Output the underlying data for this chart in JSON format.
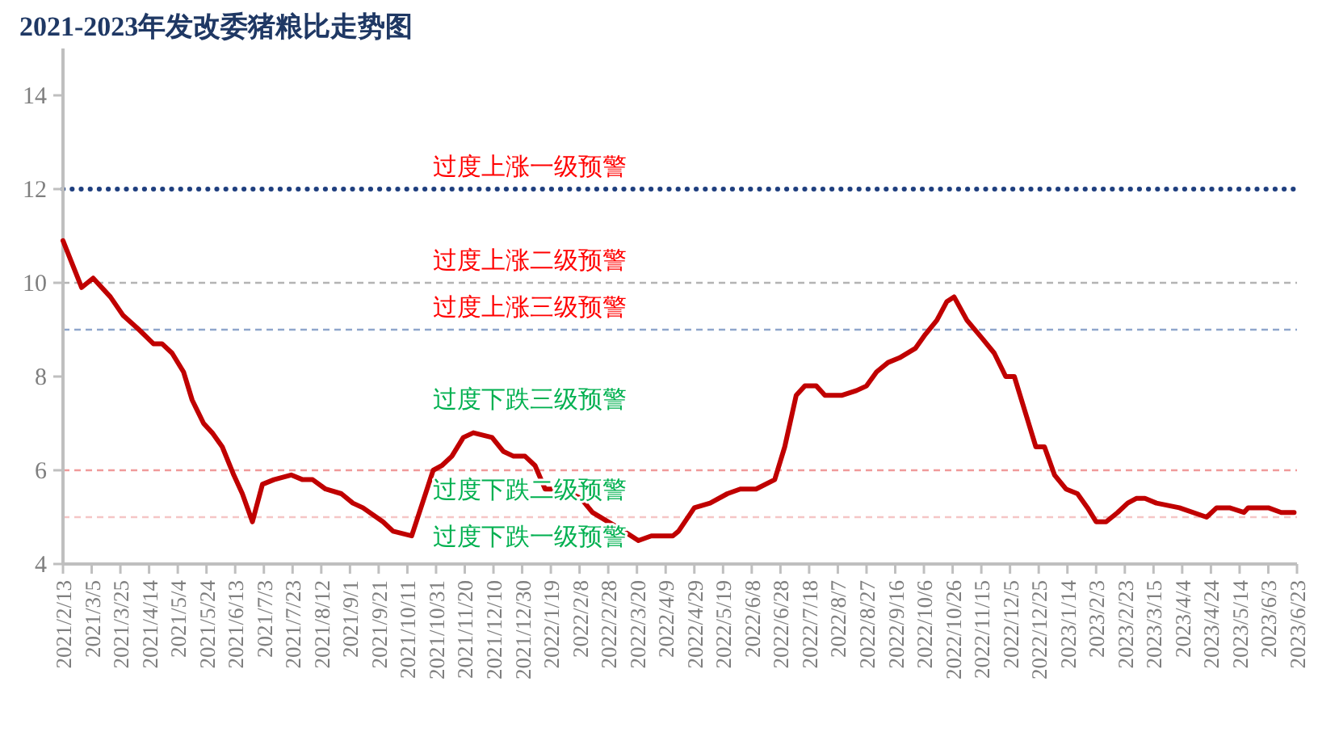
{
  "chart_data": {
    "type": "line",
    "title": "2021-2023年发改委猪粮比走势图",
    "x": [
      "2021-02-13",
      "2021-02-26",
      "2021-03-06",
      "2021-03-18",
      "2021-03-27",
      "2021-04-07",
      "2021-04-17",
      "2021-04-23",
      "2021-04-30",
      "2021-05-08",
      "2021-05-14",
      "2021-05-22",
      "2021-05-28",
      "2021-06-04",
      "2021-06-12",
      "2021-06-18",
      "2021-06-25",
      "2021-07-02",
      "2021-07-10",
      "2021-07-22",
      "2021-07-30",
      "2021-08-06",
      "2021-08-15",
      "2021-08-26",
      "2021-09-03",
      "2021-09-10",
      "2021-09-24",
      "2021-10-01",
      "2021-10-14",
      "2021-10-29",
      "2021-11-04",
      "2021-11-11",
      "2021-11-19",
      "2021-11-26",
      "2021-12-09",
      "2021-12-17",
      "2021-12-24",
      "2022-01-01",
      "2022-01-08",
      "2022-01-15",
      "2022-01-21",
      "2022-02-02",
      "2022-02-09",
      "2022-02-17",
      "2022-02-28",
      "2022-03-11",
      "2022-03-21",
      "2022-03-30",
      "2022-04-14",
      "2022-04-18",
      "2022-04-29",
      "2022-05-10",
      "2022-05-22",
      "2022-05-31",
      "2022-06-11",
      "2022-06-24",
      "2022-07-01",
      "2022-07-09",
      "2022-07-15",
      "2022-07-23",
      "2022-07-29",
      "2022-08-10",
      "2022-08-20",
      "2022-08-27",
      "2022-09-03",
      "2022-09-11",
      "2022-09-19",
      "2022-09-30",
      "2022-10-07",
      "2022-10-15",
      "2022-10-22",
      "2022-10-27",
      "2022-11-05",
      "2022-11-16",
      "2022-11-24",
      "2022-12-02",
      "2022-12-08",
      "2022-12-16",
      "2022-12-23",
      "2022-12-29",
      "2023-01-05",
      "2023-01-13",
      "2023-01-21",
      "2023-01-28",
      "2023-02-03",
      "2023-02-10",
      "2023-02-18",
      "2023-02-25",
      "2023-03-03",
      "2023-03-09",
      "2023-03-17",
      "2023-04-02",
      "2023-04-21",
      "2023-04-28",
      "2023-05-07",
      "2023-05-17",
      "2023-05-20",
      "2023-06-03",
      "2023-06-12",
      "2023-06-21"
    ],
    "series": [
      {
        "color": "#c00000",
        "values": [
          10.9,
          9.9,
          10.1,
          9.7,
          9.3,
          9.0,
          8.7,
          8.7,
          8.5,
          8.1,
          7.5,
          7.0,
          6.8,
          6.5,
          5.9,
          5.5,
          4.9,
          5.7,
          5.8,
          5.9,
          5.8,
          5.8,
          5.6,
          5.5,
          5.3,
          5.2,
          4.9,
          4.7,
          4.6,
          6.0,
          6.1,
          6.3,
          6.7,
          6.8,
          6.7,
          6.4,
          6.3,
          6.3,
          6.1,
          5.6,
          5.6,
          5.5,
          5.4,
          5.1,
          4.9,
          4.7,
          4.5,
          4.6,
          4.6,
          4.7,
          5.2,
          5.3,
          5.5,
          5.6,
          5.6,
          5.8,
          6.5,
          7.6,
          7.8,
          7.8,
          7.6,
          7.6,
          7.7,
          7.8,
          8.1,
          8.3,
          8.4,
          8.6,
          8.9,
          9.2,
          9.6,
          9.7,
          9.2,
          8.8,
          8.5,
          8.0,
          8.0,
          7.2,
          6.5,
          6.5,
          5.9,
          5.6,
          5.5,
          5.2,
          4.9,
          4.9,
          5.1,
          5.3,
          5.4,
          5.4,
          5.3,
          5.2,
          5.0,
          5.2,
          5.2,
          5.1,
          5.2,
          5.2,
          5.1,
          5.1
        ]
      }
    ],
    "xlim": [
      "2021-02-13",
      "2023-06-23"
    ],
    "xticks": [
      {
        "value": "2021-02-13",
        "label": "2021/2/13"
      },
      {
        "value": "2021-03-05",
        "label": "2021/3/5"
      },
      {
        "value": "2021-03-25",
        "label": "2021/3/25"
      },
      {
        "value": "2021-04-14",
        "label": "2021/4/14"
      },
      {
        "value": "2021-05-04",
        "label": "2021/5/4"
      },
      {
        "value": "2021-05-24",
        "label": "2021/5/24"
      },
      {
        "value": "2021-06-13",
        "label": "2021/6/13"
      },
      {
        "value": "2021-07-03",
        "label": "2021/7/3"
      },
      {
        "value": "2021-07-23",
        "label": "2021/7/23"
      },
      {
        "value": "2021-08-12",
        "label": "2021/8/12"
      },
      {
        "value": "2021-09-01",
        "label": "2021/9/1"
      },
      {
        "value": "2021-09-21",
        "label": "2021/9/21"
      },
      {
        "value": "2021-10-11",
        "label": "2021/10/11"
      },
      {
        "value": "2021-10-31",
        "label": "2021/10/31"
      },
      {
        "value": "2021-11-20",
        "label": "2021/11/20"
      },
      {
        "value": "2021-12-10",
        "label": "2021/12/10"
      },
      {
        "value": "2021-12-30",
        "label": "2021/12/30"
      },
      {
        "value": "2022-01-19",
        "label": "2022/1/19"
      },
      {
        "value": "2022-02-08",
        "label": "2022/2/8"
      },
      {
        "value": "2022-02-28",
        "label": "2022/2/28"
      },
      {
        "value": "2022-03-20",
        "label": "2022/3/20"
      },
      {
        "value": "2022-04-09",
        "label": "2022/4/9"
      },
      {
        "value": "2022-04-29",
        "label": "2022/4/29"
      },
      {
        "value": "2022-05-19",
        "label": "2022/5/19"
      },
      {
        "value": "2022-06-08",
        "label": "2022/6/8"
      },
      {
        "value": "2022-06-28",
        "label": "2022/6/28"
      },
      {
        "value": "2022-07-18",
        "label": "2022/7/18"
      },
      {
        "value": "2022-08-07",
        "label": "2022/8/7"
      },
      {
        "value": "2022-08-27",
        "label": "2022/8/27"
      },
      {
        "value": "2022-09-16",
        "label": "2022/9/16"
      },
      {
        "value": "2022-10-06",
        "label": "2022/10/6"
      },
      {
        "value": "2022-10-26",
        "label": "2022/10/26"
      },
      {
        "value": "2022-11-15",
        "label": "2022/11/15"
      },
      {
        "value": "2022-12-05",
        "label": "2022/12/5"
      },
      {
        "value": "2022-12-25",
        "label": "2022/12/25"
      },
      {
        "value": "2023-01-14",
        "label": "2023/1/14"
      },
      {
        "value": "2023-02-03",
        "label": "2023/2/3"
      },
      {
        "value": "2023-02-23",
        "label": "2023/2/23"
      },
      {
        "value": "2023-03-15",
        "label": "2023/3/15"
      },
      {
        "value": "2023-04-04",
        "label": "2023/4/4"
      },
      {
        "value": "2023-04-24",
        "label": "2023/4/24"
      },
      {
        "value": "2023-05-14",
        "label": "2023/5/14"
      },
      {
        "value": "2023-06-03",
        "label": "2023/6/3"
      },
      {
        "value": "2023-06-23",
        "label": "2023/6/23"
      }
    ],
    "ylim": [
      4,
      15
    ],
    "yticks": [
      4,
      6,
      8,
      10,
      12,
      14
    ],
    "ref_lines": [
      {
        "axis": "y",
        "value": 12,
        "label": "过度上涨一级预警",
        "color": "#1f3f7f",
        "line_style": "dotted"
      },
      {
        "axis": "y",
        "value": 10,
        "label": "过度上涨二级预警",
        "color": "#b4b4b4",
        "line_style": "dashed"
      },
      {
        "axis": "y",
        "value": 9,
        "label": "过度上涨三级预警",
        "color": "#8fa6cc",
        "line_style": "dashed"
      },
      {
        "axis": "y",
        "value": 6,
        "label": "过度下跌二级预警",
        "color": "#f09a9a",
        "line_style": "dashed"
      },
      {
        "axis": "y",
        "value": 5,
        "label": "过度下跌一级预警",
        "color": "#f5c6c6",
        "line_style": "dashed"
      }
    ],
    "annotations": [
      "过度下跌三级预警"
    ],
    "grid": false,
    "marker": "none",
    "line_style": "solid"
  }
}
